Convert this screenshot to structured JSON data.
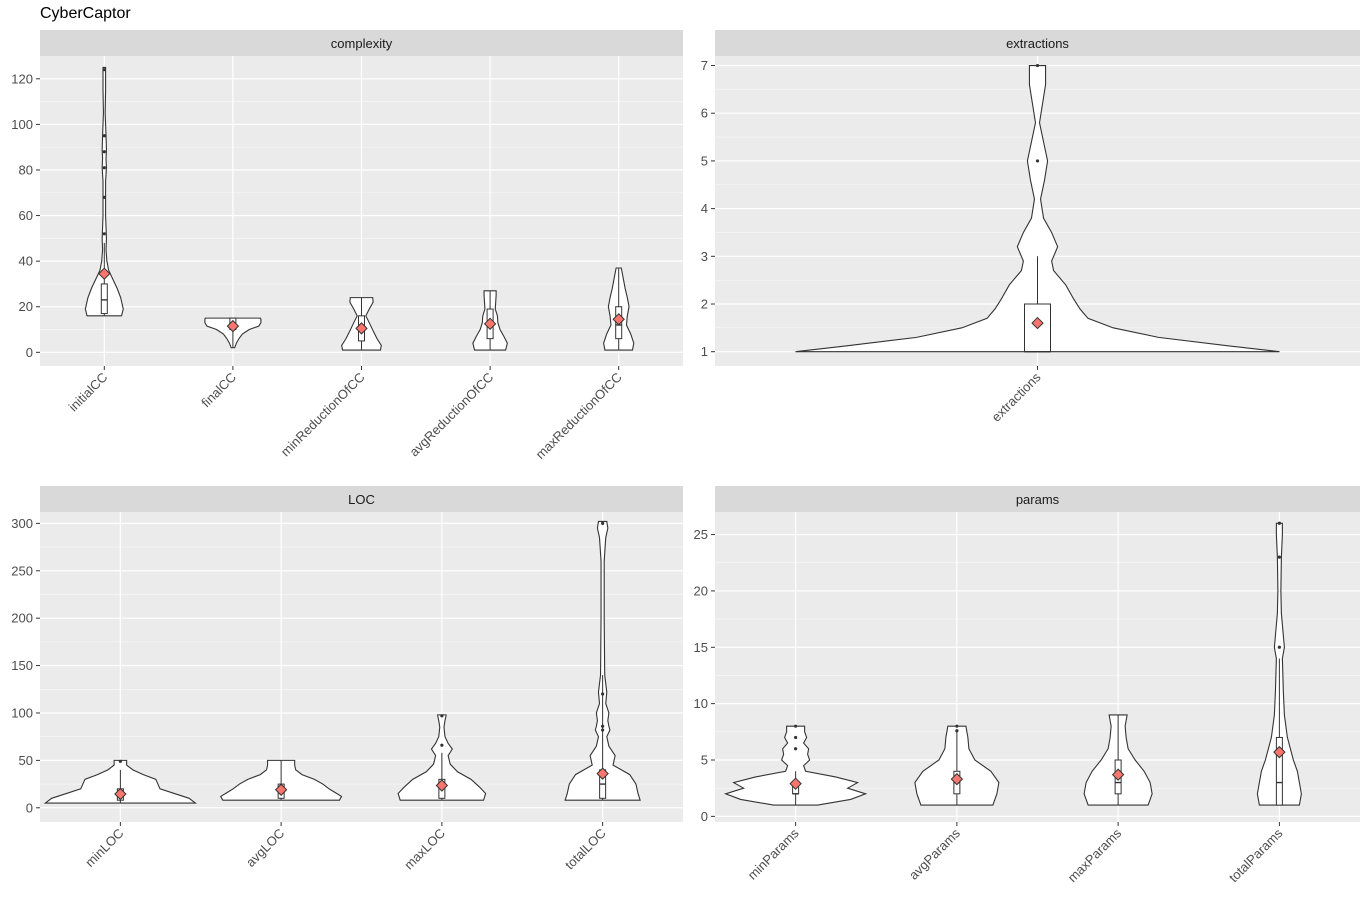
{
  "title": "CyberCaptor",
  "colors": {
    "panel_bg": "#ebebeb",
    "strip_bg": "#d9d9d9",
    "grid_major": "#ffffff",
    "violin_fill": "#ffffff",
    "violin_stroke": "#333333",
    "mean_marker": "#f8766d"
  },
  "chart_data": [
    {
      "type": "violin",
      "facet": "complexity",
      "ylim": [
        -6,
        130
      ],
      "yticks": [
        0,
        20,
        40,
        60,
        80,
        100,
        120
      ],
      "grid": true,
      "categories": [
        "initialCC",
        "finalCC",
        "minReductionOfCC",
        "avgReductionOfCC",
        "maxReductionOfCC"
      ],
      "series": [
        {
          "category": "initialCC",
          "min": 16,
          "q1": 17,
          "median": 23,
          "q3": 30,
          "max": 125,
          "mean": 34.5,
          "whisker_high": 48,
          "outliers": [
            52,
            68,
            81,
            88,
            95,
            124
          ],
          "density": [
            [
              16,
              40
            ],
            [
              19,
              44
            ],
            [
              24,
              38
            ],
            [
              28,
              30
            ],
            [
              32,
              20
            ],
            [
              36,
              10
            ],
            [
              40,
              6
            ],
            [
              45,
              4
            ],
            [
              50,
              5
            ],
            [
              55,
              4
            ],
            [
              60,
              3
            ],
            [
              66,
              3
            ],
            [
              75,
              3
            ],
            [
              81,
              5
            ],
            [
              85,
              4
            ],
            [
              89,
              5
            ],
            [
              95,
              4
            ],
            [
              105,
              2
            ],
            [
              115,
              3
            ],
            [
              120,
              3
            ],
            [
              125,
              3
            ]
          ]
        },
        {
          "category": "finalCC",
          "min": 2,
          "q1": 10,
          "median": 12,
          "q3": 15,
          "max": 15,
          "mean": 11.5,
          "whisker_high": 15,
          "outliers": [],
          "density": [
            [
              2,
              4
            ],
            [
              4,
              8
            ],
            [
              6,
              14
            ],
            [
              8,
              22
            ],
            [
              10,
              38
            ],
            [
              11.5,
              60
            ],
            [
              13,
              65
            ],
            [
              14.5,
              65
            ],
            [
              15,
              64
            ]
          ]
        },
        {
          "category": "minReductionOfCC",
          "min": 1,
          "q1": 5,
          "median": 10,
          "q3": 16,
          "max": 24,
          "mean": 10.5,
          "whisker_high": 24,
          "outliers": [],
          "density": [
            [
              1,
              44
            ],
            [
              3,
              46
            ],
            [
              6,
              36
            ],
            [
              9,
              28
            ],
            [
              13,
              18
            ],
            [
              16,
              10
            ],
            [
              19,
              18
            ],
            [
              22,
              27
            ],
            [
              24,
              26
            ]
          ]
        },
        {
          "category": "avgReductionOfCC",
          "min": 1,
          "q1": 6,
          "median": 12,
          "q3": 19,
          "max": 27,
          "mean": 12.5,
          "whisker_high": 27,
          "outliers": [],
          "density": [
            [
              1,
              36
            ],
            [
              4,
              40
            ],
            [
              7,
              32
            ],
            [
              10,
              23
            ],
            [
              13,
              18
            ],
            [
              16,
              17
            ],
            [
              19,
              12
            ],
            [
              22,
              13
            ],
            [
              25,
              14
            ],
            [
              27,
              14
            ]
          ]
        },
        {
          "category": "maxReductionOfCC",
          "min": 1,
          "q1": 6,
          "median": 12,
          "q3": 20,
          "max": 37,
          "mean": 14.5,
          "whisker_high": 37,
          "outliers": [],
          "density": [
            [
              1,
              32
            ],
            [
              4,
              35
            ],
            [
              8,
              28
            ],
            [
              12,
              18
            ],
            [
              16,
              20
            ],
            [
              20,
              24
            ],
            [
              24,
              20
            ],
            [
              28,
              15
            ],
            [
              32,
              11
            ],
            [
              35,
              8
            ],
            [
              37,
              6
            ]
          ]
        }
      ]
    },
    {
      "type": "violin",
      "facet": "extractions",
      "ylim": [
        0.7,
        7.2
      ],
      "yticks": [
        1,
        2,
        3,
        4,
        5,
        6,
        7
      ],
      "grid": true,
      "categories": [
        "extractions"
      ],
      "series": [
        {
          "category": "extractions",
          "min": 1,
          "q1": 1,
          "median": 1,
          "q3": 2,
          "max": 7,
          "mean": 1.6,
          "whisker_high": 3,
          "outliers": [
            5,
            7
          ],
          "density": [
            [
              1,
              240
            ],
            [
              1.12,
              190
            ],
            [
              1.3,
              120
            ],
            [
              1.5,
              75
            ],
            [
              1.7,
              50
            ],
            [
              1.9,
              42
            ],
            [
              2.1,
              36
            ],
            [
              2.4,
              28
            ],
            [
              2.7,
              16
            ],
            [
              2.9,
              14
            ],
            [
              3.2,
              20
            ],
            [
              3.5,
              14
            ],
            [
              3.8,
              6
            ],
            [
              4.2,
              3
            ],
            [
              4.6,
              7
            ],
            [
              5,
              10
            ],
            [
              5.4,
              6
            ],
            [
              5.8,
              2
            ],
            [
              6.2,
              5
            ],
            [
              6.6,
              8
            ],
            [
              7,
              8
            ]
          ]
        }
      ]
    },
    {
      "type": "violin",
      "facet": "LOC",
      "ylim": [
        -15,
        312
      ],
      "yticks": [
        0,
        50,
        100,
        150,
        200,
        250,
        300
      ],
      "grid": true,
      "categories": [
        "minLOC",
        "avgLOC",
        "maxLOC",
        "totalLOC"
      ],
      "series": [
        {
          "category": "minLOC",
          "min": 5,
          "q1": 8,
          "median": 12,
          "q3": 20,
          "max": 50,
          "mean": 14.5,
          "whisker_high": 40,
          "outliers": [
            49
          ],
          "density": [
            [
              5,
              72
            ],
            [
              10,
              66
            ],
            [
              15,
              52
            ],
            [
              20,
              38
            ],
            [
              25,
              36
            ],
            [
              30,
              34
            ],
            [
              35,
              22
            ],
            [
              40,
              12
            ],
            [
              45,
              6
            ],
            [
              50,
              6
            ]
          ]
        },
        {
          "category": "avgLOC",
          "min": 8,
          "q1": 10,
          "median": 17,
          "q3": 25,
          "max": 50,
          "mean": 19,
          "whisker_high": 50,
          "outliers": [],
          "density": [
            [
              8,
              56
            ],
            [
              12,
              58
            ],
            [
              16,
              52
            ],
            [
              20,
              46
            ],
            [
              25,
              40
            ],
            [
              30,
              32
            ],
            [
              35,
              20
            ],
            [
              40,
              14
            ],
            [
              45,
              13
            ],
            [
              50,
              13
            ]
          ]
        },
        {
          "category": "maxLOC",
          "min": 8,
          "q1": 10,
          "median": 22,
          "q3": 30,
          "max": 98,
          "mean": 23.5,
          "whisker_high": 58,
          "outliers": [
            66,
            97
          ],
          "density": [
            [
              8,
              40
            ],
            [
              15,
              42
            ],
            [
              22,
              36
            ],
            [
              30,
              28
            ],
            [
              38,
              15
            ],
            [
              46,
              8
            ],
            [
              55,
              6
            ],
            [
              62,
              10
            ],
            [
              68,
              6
            ],
            [
              75,
              3
            ],
            [
              85,
              2
            ],
            [
              92,
              3
            ],
            [
              97,
              4
            ],
            [
              98,
              4
            ]
          ]
        },
        {
          "category": "totalLOC",
          "min": 8,
          "q1": 10,
          "median": 25,
          "q3": 40,
          "max": 302,
          "mean": 36,
          "whisker_high": 140,
          "outliers": [
            82,
            86,
            120,
            300
          ],
          "density": [
            [
              8,
              36
            ],
            [
              15,
              34
            ],
            [
              25,
              32
            ],
            [
              35,
              26
            ],
            [
              45,
              10
            ],
            [
              55,
              12
            ],
            [
              65,
              6
            ],
            [
              75,
              4
            ],
            [
              82,
              7
            ],
            [
              86,
              6
            ],
            [
              92,
              5
            ],
            [
              100,
              6
            ],
            [
              110,
              3
            ],
            [
              122,
              4
            ],
            [
              140,
              2
            ],
            [
              200,
              1.5
            ],
            [
              260,
              1.5
            ],
            [
              285,
              3
            ],
            [
              295,
              5
            ],
            [
              302,
              4
            ]
          ]
        }
      ]
    },
    {
      "type": "violin",
      "facet": "params",
      "ylim": [
        -0.5,
        27
      ],
      "yticks": [
        0,
        5,
        10,
        15,
        20,
        25
      ],
      "grid": true,
      "categories": [
        "minParams",
        "avgParams",
        "maxParams",
        "totalParams"
      ],
      "series": [
        {
          "category": "minParams",
          "min": 1,
          "q1": 2,
          "median": 2,
          "q3": 3,
          "max": 8,
          "mean": 2.9,
          "whisker_high": 4,
          "outliers": [
            6,
            7,
            8
          ],
          "density": [
            [
              1,
              22
            ],
            [
              1.5,
              55
            ],
            [
              2,
              70
            ],
            [
              2.5,
              52
            ],
            [
              3,
              62
            ],
            [
              3.5,
              40
            ],
            [
              4,
              10
            ],
            [
              4.5,
              8
            ],
            [
              5,
              14
            ],
            [
              5.5,
              12
            ],
            [
              6,
              13
            ],
            [
              6.5,
              8
            ],
            [
              7,
              11
            ],
            [
              7.5,
              9
            ],
            [
              8,
              9
            ]
          ]
        },
        {
          "category": "avgParams",
          "min": 1,
          "q1": 2,
          "median": 3,
          "q3": 4,
          "max": 8,
          "mean": 3.3,
          "whisker_high": 7.5,
          "outliers": [
            7.6,
            8
          ],
          "density": [
            [
              1,
              36
            ],
            [
              2,
              40
            ],
            [
              3,
              42
            ],
            [
              4,
              34
            ],
            [
              5,
              18
            ],
            [
              6,
              12
            ],
            [
              7,
              11
            ],
            [
              8,
              9
            ]
          ]
        },
        {
          "category": "maxParams",
          "min": 1,
          "q1": 2,
          "median": 3,
          "q3": 5,
          "max": 9,
          "mean": 3.7,
          "whisker_high": 9,
          "outliers": [],
          "density": [
            [
              1,
              30
            ],
            [
              2,
              34
            ],
            [
              3,
              32
            ],
            [
              4,
              26
            ],
            [
              5,
              17
            ],
            [
              6,
              10
            ],
            [
              7,
              8
            ],
            [
              8,
              7
            ],
            [
              9,
              9
            ]
          ]
        },
        {
          "category": "totalParams",
          "min": 1,
          "q1": 1,
          "median": 3,
          "q3": 7,
          "max": 26,
          "mean": 5.7,
          "whisker_high": 14,
          "outliers": [
            15,
            23,
            26
          ],
          "density": [
            [
              1,
              20
            ],
            [
              2,
              22
            ],
            [
              3,
              20
            ],
            [
              4,
              18
            ],
            [
              5,
              14
            ],
            [
              7,
              8
            ],
            [
              9,
              5
            ],
            [
              11,
              4
            ],
            [
              14,
              3
            ],
            [
              15,
              5
            ],
            [
              16,
              4
            ],
            [
              18,
              2
            ],
            [
              20,
              1.5
            ],
            [
              23,
              2
            ],
            [
              25,
              3
            ],
            [
              26,
              3
            ]
          ]
        }
      ]
    }
  ]
}
